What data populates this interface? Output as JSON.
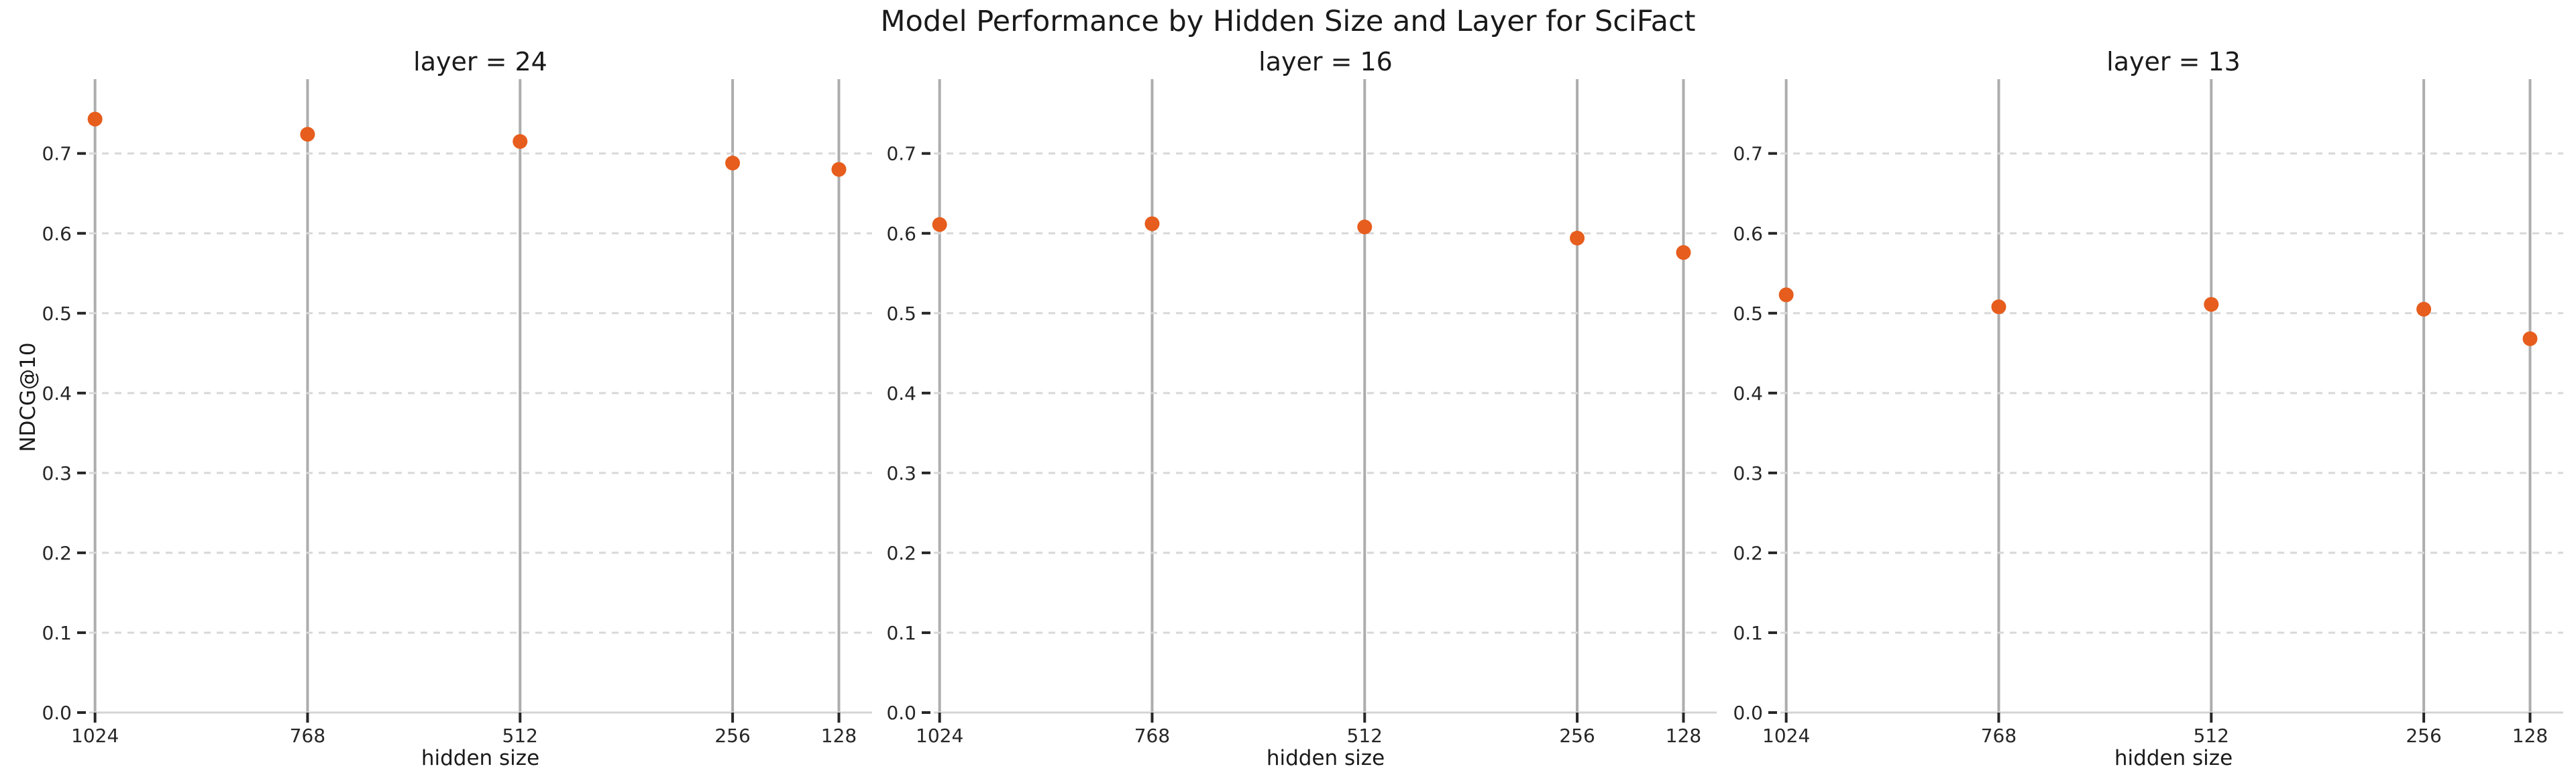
{
  "figure": {
    "title": "Model Performance by Hidden Size and Layer for SciFact"
  },
  "chart_data": {
    "type": "scatter",
    "title": "Model Performance by Hidden Size and Layer for SciFact",
    "xlabel": "hidden size",
    "ylabel": "NDCG@10",
    "x": [
      1024,
      768,
      512,
      256,
      128
    ],
    "x_tick_labels": [
      "1024",
      "768",
      "512",
      "256",
      "128"
    ],
    "x_axis": "linear-descending",
    "xlim": [
      1031,
      88
    ],
    "yticks": [
      0.0,
      0.1,
      0.2,
      0.3,
      0.4,
      0.5,
      0.6,
      0.7
    ],
    "y_tick_labels": [
      "0.0",
      "0.1",
      "0.2",
      "0.3",
      "0.4",
      "0.5",
      "0.6",
      "0.7"
    ],
    "ylim": [
      0,
      0.793
    ],
    "grid": {
      "vertical": "solid",
      "horizontal": "dashed"
    },
    "legend": "none",
    "facets": [
      {
        "label": "layer = 24",
        "layer": 24,
        "values": [
          0.743,
          0.724,
          0.715,
          0.688,
          0.68
        ]
      },
      {
        "label": "layer = 16",
        "layer": 16,
        "values": [
          0.611,
          0.612,
          0.608,
          0.594,
          0.576
        ]
      },
      {
        "label": "layer = 13",
        "layer": 13,
        "values": [
          0.523,
          0.508,
          0.511,
          0.505,
          0.468
        ]
      }
    ],
    "colors": {
      "point": "#e65d1d",
      "vertical_grid": "#adadad",
      "horizontal_grid": "#d8d8d8",
      "axis_line": "#d4d4d4",
      "tick": "#262626",
      "text": "#262626",
      "background": "#ffffff"
    }
  }
}
